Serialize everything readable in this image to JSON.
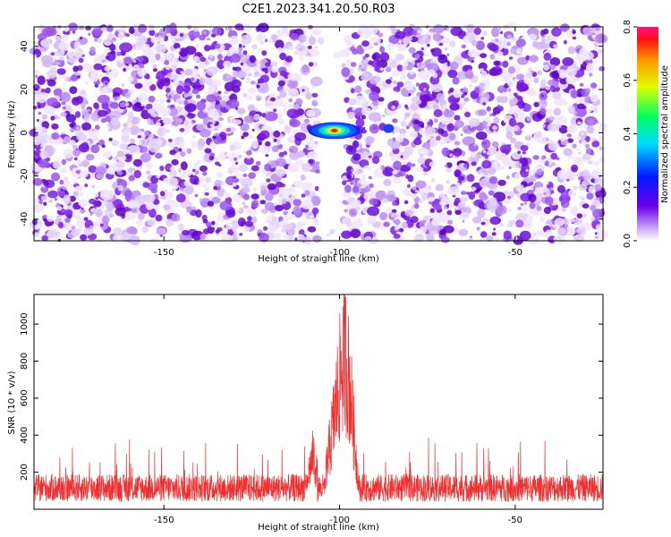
{
  "title": "C2E1.2023.341.20.50.R03",
  "colors": {
    "snr_line": "#ee3030",
    "background_dots": "#8a2be2"
  },
  "chart_data": [
    {
      "type": "heatmap",
      "title": "C2E1.2023.341.20.50.R03",
      "xlabel": "Height of straight line (km)",
      "ylabel": "Frequency (Hz)",
      "xlim": [
        -187,
        -25
      ],
      "ylim": [
        -50,
        49
      ],
      "xticks": [
        -150,
        -100,
        -50
      ],
      "yticks": [
        -40,
        -20,
        0,
        20,
        40
      ],
      "colorbar": {
        "label": "Normalized spectral amplitude",
        "range": [
          0.0,
          0.8
        ],
        "ticks": [
          "0.0",
          "0.2",
          "0.4",
          "0.6",
          "0.8"
        ],
        "colormap": "rainbow"
      },
      "gap_region": [
        -106,
        -99
      ],
      "peak": {
        "x": -101.5,
        "y": 1,
        "value": 0.8
      },
      "peak_extent": {
        "x": [
          -110,
          -95
        ],
        "y": [
          -3,
          4
        ]
      },
      "grid": false,
      "legend": "none"
    },
    {
      "type": "line",
      "xlabel": "Height of straight line (km)",
      "ylabel": "SNR (10 * v/v)",
      "xlim": [
        -187,
        -25
      ],
      "ylim": [
        0,
        1160
      ],
      "xticks": [
        -150,
        -100,
        -50
      ],
      "yticks": [
        200,
        400,
        600,
        800,
        1000
      ],
      "series": [
        {
          "baseline": 150,
          "noise_spikes_max": 390,
          "peak_x": -98.5,
          "peak_value": 1160,
          "side_peak": {
            "x": -107.5,
            "value": 400
          },
          "x": [
            -187,
            -150,
            -120,
            -110,
            -107.5,
            -105,
            -102,
            -100,
            -98.5,
            -97,
            -95,
            -93,
            -90,
            -80,
            -70,
            -50,
            -25
          ],
          "y": [
            150,
            150,
            150,
            160,
            400,
            80,
            600,
            950,
            1160,
            900,
            300,
            30,
            160,
            150,
            150,
            150,
            150
          ]
        }
      ],
      "grid": false,
      "legend": "none"
    }
  ]
}
